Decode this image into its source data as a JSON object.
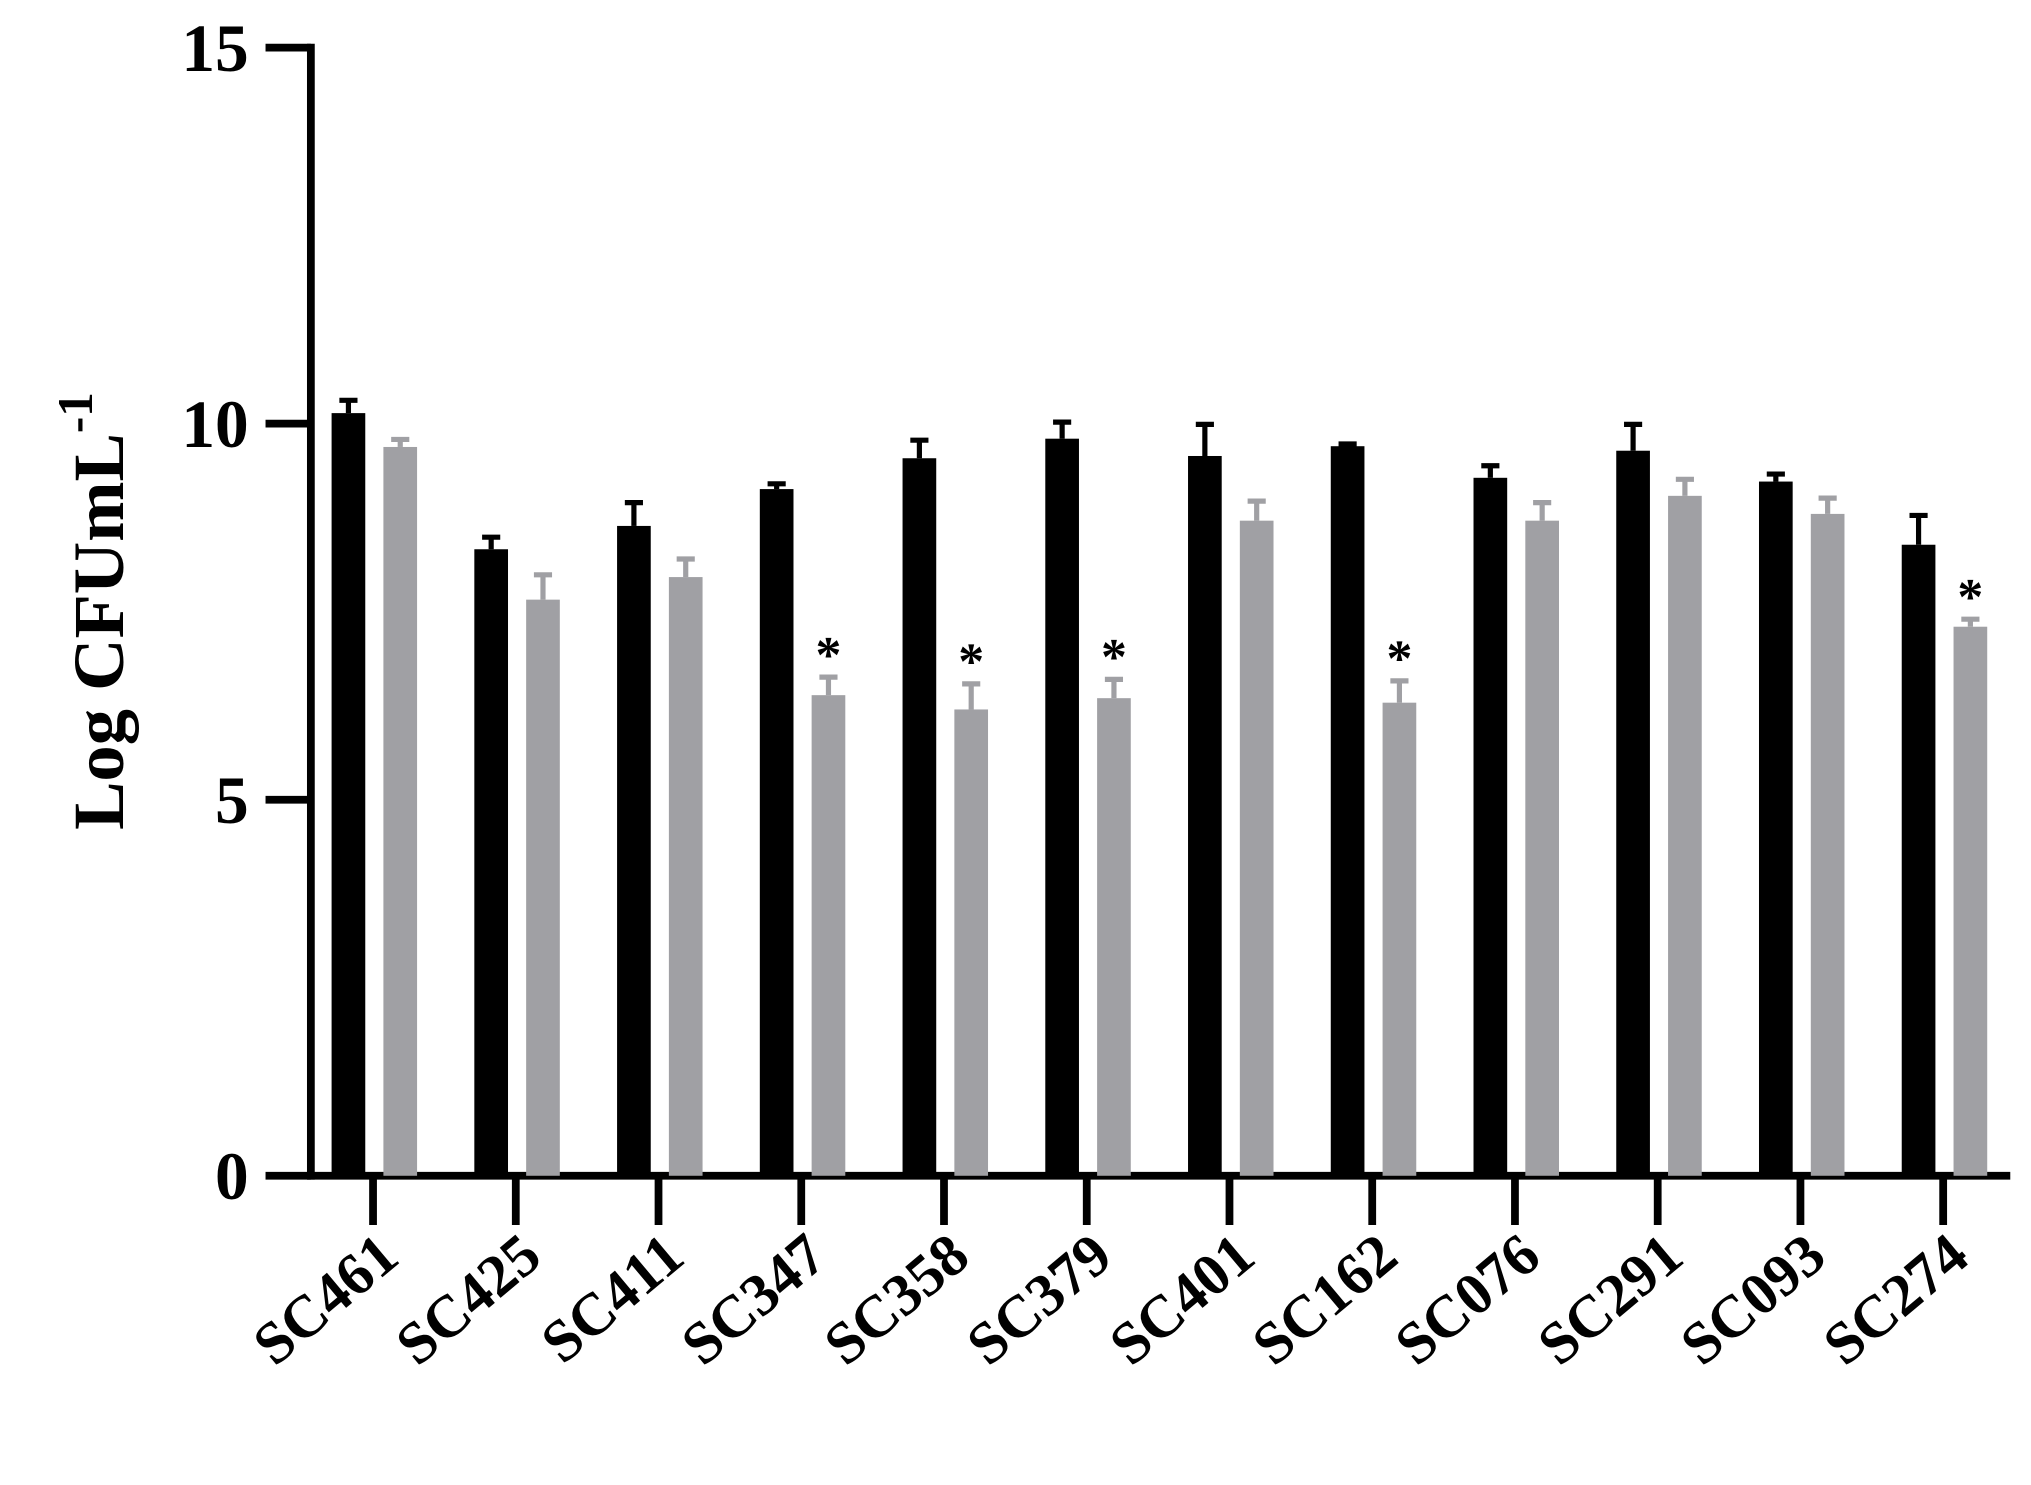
{
  "chart_data": {
    "type": "bar",
    "ylabel": "Log CFUmL",
    "ylabel_superscript": "-1",
    "categories": [
      "SC461",
      "SC425",
      "SC411",
      "SC347",
      "SC358",
      "SC379",
      "SC401",
      "SC162",
      "SC076",
      "SC291",
      "SC093",
      "SC274"
    ],
    "series": [
      {
        "color": "#000000",
        "values": [
          10.14,
          8.33,
          8.64,
          9.13,
          9.54,
          9.8,
          9.57,
          9.7,
          9.28,
          9.64,
          9.23,
          8.39
        ],
        "errors": [
          0.17,
          0.16,
          0.31,
          0.07,
          0.24,
          0.22,
          0.42,
          0.03,
          0.16,
          0.35,
          0.1,
          0.39
        ]
      },
      {
        "color": "#a0a0a4",
        "values": [
          9.69,
          7.66,
          7.96,
          6.39,
          6.2,
          6.35,
          8.71,
          6.29,
          8.71,
          9.04,
          8.8,
          7.3
        ],
        "errors": [
          0.1,
          0.33,
          0.24,
          0.24,
          0.34,
          0.25,
          0.26,
          0.29,
          0.24,
          0.22,
          0.21,
          0.1
        ],
        "annotations": [
          null,
          null,
          null,
          "*",
          "*",
          "*",
          null,
          "*",
          null,
          null,
          null,
          "*"
        ]
      }
    ],
    "ylim": [
      0,
      15
    ],
    "yticks": [
      0,
      5,
      10,
      15
    ],
    "grid": false
  }
}
